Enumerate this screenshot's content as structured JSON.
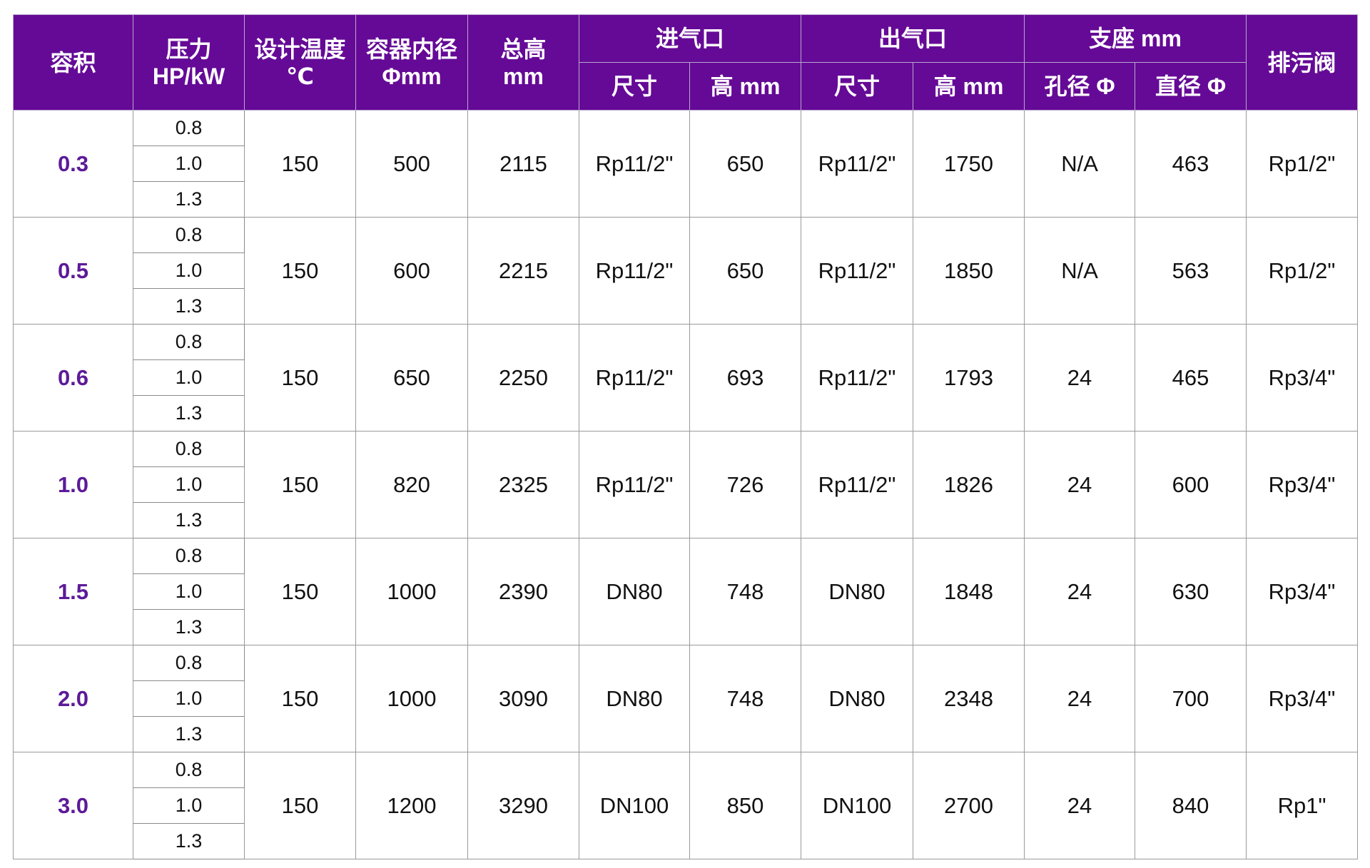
{
  "colors": {
    "header_bg": "#650a96",
    "header_text": "#ffffff",
    "capacity_text": "#5c1a98",
    "border": "#9a9a9a"
  },
  "header": {
    "capacity": "容积",
    "pressure_1": "压力",
    "pressure_2": "HP/kW",
    "temp_1": "设计温度",
    "temp_2": "℃",
    "diameter_1": "容器内径",
    "diameter_2": "Φmm",
    "height_1": "总高",
    "height_2": "mm",
    "inlet": "进气口",
    "outlet": "出气口",
    "support": "支座 mm",
    "drain": "排污阀",
    "inlet_size": "尺寸",
    "inlet_height": "高 mm",
    "outlet_size": "尺寸",
    "outlet_height": "高 mm",
    "hole": "孔径 Φ",
    "support_diameter": "直径 Φ"
  },
  "rows": [
    {
      "capacity": "0.3",
      "pressures": [
        "0.8",
        "1.0",
        "1.3"
      ],
      "temp": "150",
      "diameter": "500",
      "height": "2115",
      "inlet_size": "Rp11/2\"",
      "inlet_height": "650",
      "outlet_size": "Rp11/2\"",
      "outlet_height": "1750",
      "hole": "N/A",
      "support_diameter": "463",
      "drain": "Rp1/2\""
    },
    {
      "capacity": "0.5",
      "pressures": [
        "0.8",
        "1.0",
        "1.3"
      ],
      "temp": "150",
      "diameter": "600",
      "height": "2215",
      "inlet_size": "Rp11/2\"",
      "inlet_height": "650",
      "outlet_size": "Rp11/2\"",
      "outlet_height": "1850",
      "hole": "N/A",
      "support_diameter": "563",
      "drain": "Rp1/2\""
    },
    {
      "capacity": "0.6",
      "pressures": [
        "0.8",
        "1.0",
        "1.3"
      ],
      "temp": "150",
      "diameter": "650",
      "height": "2250",
      "inlet_size": "Rp11/2\"",
      "inlet_height": "693",
      "outlet_size": "Rp11/2\"",
      "outlet_height": "1793",
      "hole": "24",
      "support_diameter": "465",
      "drain": "Rp3/4\""
    },
    {
      "capacity": "1.0",
      "pressures": [
        "0.8",
        "1.0",
        "1.3"
      ],
      "temp": "150",
      "diameter": "820",
      "height": "2325",
      "inlet_size": "Rp11/2\"",
      "inlet_height": "726",
      "outlet_size": "Rp11/2\"",
      "outlet_height": "1826",
      "hole": "24",
      "support_diameter": "600",
      "drain": "Rp3/4\""
    },
    {
      "capacity": "1.5",
      "pressures": [
        "0.8",
        "1.0",
        "1.3"
      ],
      "temp": "150",
      "diameter": "1000",
      "height": "2390",
      "inlet_size": "DN80",
      "inlet_height": "748",
      "outlet_size": "DN80",
      "outlet_height": "1848",
      "hole": "24",
      "support_diameter": "630",
      "drain": "Rp3/4\""
    },
    {
      "capacity": "2.0",
      "pressures": [
        "0.8",
        "1.0",
        "1.3"
      ],
      "temp": "150",
      "diameter": "1000",
      "height": "3090",
      "inlet_size": "DN80",
      "inlet_height": "748",
      "outlet_size": "DN80",
      "outlet_height": "2348",
      "hole": "24",
      "support_diameter": "700",
      "drain": "Rp3/4\""
    },
    {
      "capacity": "3.0",
      "pressures": [
        "0.8",
        "1.0",
        "1.3"
      ],
      "temp": "150",
      "diameter": "1200",
      "height": "3290",
      "inlet_size": "DN100",
      "inlet_height": "850",
      "outlet_size": "DN100",
      "outlet_height": "2700",
      "hole": "24",
      "support_diameter": "840",
      "drain": "Rp1\""
    }
  ]
}
